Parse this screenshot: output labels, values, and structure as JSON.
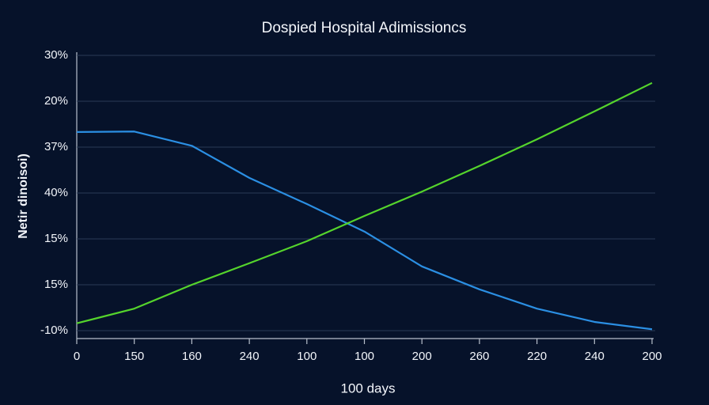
{
  "chart_data": {
    "type": "line",
    "title": "Dospied Hospital Adimissioncs",
    "x_label": "100 days",
    "y_label": "Netir dinoisoi)",
    "categories": [
      "0",
      "150",
      "160",
      "240",
      "100",
      "100",
      "200",
      "260",
      "220",
      "240",
      "200"
    ],
    "series": [
      {
        "name": "blue",
        "color": "#2b8fe3",
        "values": [
          4.33,
          4.34,
          4.03,
          3.33,
          2.76,
          2.16,
          1.4,
          0.9,
          0.48,
          0.19,
          0.03
        ]
      },
      {
        "name": "green",
        "color": "#55d42c",
        "values": [
          0.16,
          0.48,
          1.0,
          1.47,
          1.95,
          2.5,
          3.03,
          3.59,
          4.17,
          4.78,
          5.4
        ]
      }
    ],
    "ylim": [
      0,
      6
    ],
    "yticks": [
      {
        "value": 0,
        "label": "-10%"
      },
      {
        "value": 1,
        "label": "15%"
      },
      {
        "value": 2,
        "label": "15%"
      },
      {
        "value": 3,
        "label": "40%"
      },
      {
        "value": 4,
        "label": "37%"
      },
      {
        "value": 5,
        "label": "20%"
      },
      {
        "value": 6,
        "label": "30%"
      }
    ],
    "grid": true
  }
}
